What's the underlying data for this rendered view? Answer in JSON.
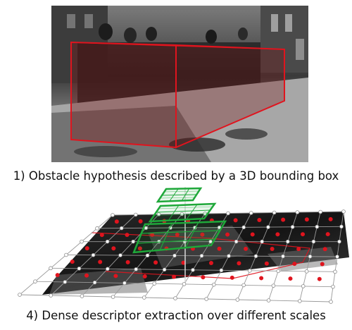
{
  "panels": [
    {
      "caption": "1) Obstacle hypothesis described by a 3D bounding box",
      "box_color": "#e0141e"
    },
    {
      "caption": "4) Dense descriptor extraction over different scales",
      "grid_color": "#9a9a9a",
      "point_color": "#e0141e",
      "scale_color": "#1fa83a"
    }
  ]
}
